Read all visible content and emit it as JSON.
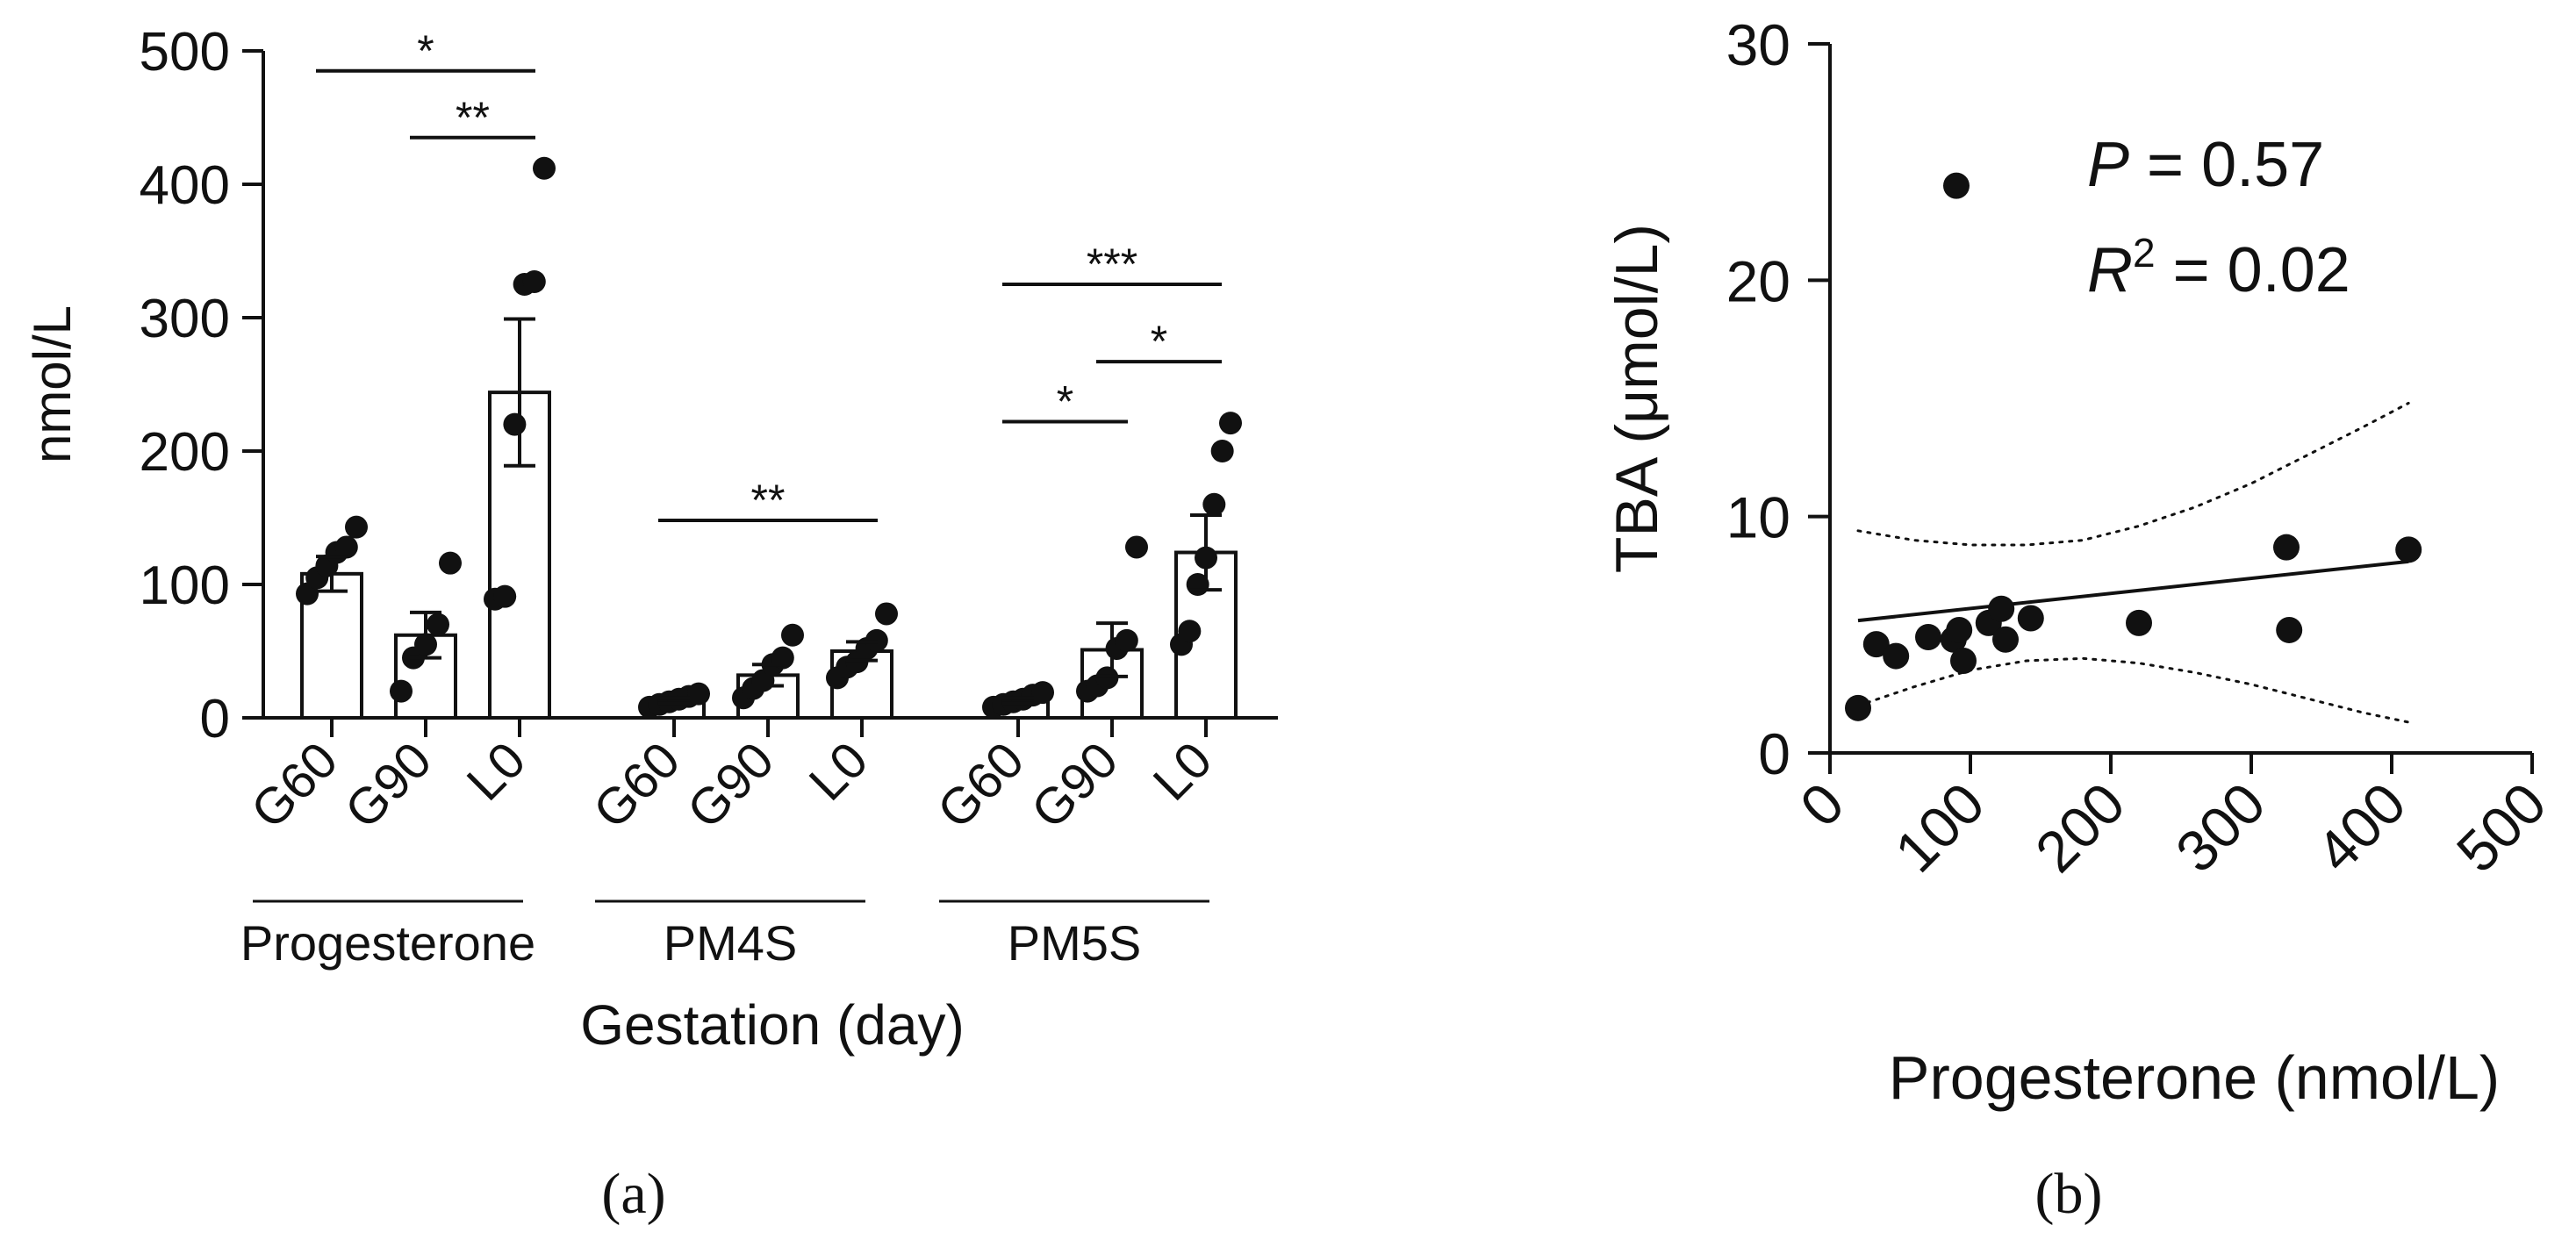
{
  "panel_a": {
    "panel_label": "(a)",
    "chart_data": {
      "type": "bar",
      "title": "",
      "ylabel": "nmol/L",
      "xlabel": "Gestation (day)",
      "ylim": [
        0,
        500
      ],
      "yticks": [
        0,
        100,
        200,
        300,
        400,
        500
      ],
      "yticklabels": [
        "0",
        "100",
        "200",
        "300",
        "400",
        "500"
      ],
      "groups": [
        {
          "name": "Progesterone",
          "bars": [
            {
              "label": "G60",
              "mean": 108,
              "sem": 13,
              "points": [
                93,
                105,
                114,
                124,
                128,
                143
              ]
            },
            {
              "label": "G90",
              "mean": 62,
              "sem": 17,
              "points": [
                20,
                45,
                55,
                70,
                116
              ]
            },
            {
              "label": "L0",
              "mean": 244,
              "sem": 55,
              "points": [
                89,
                91,
                220,
                325,
                327,
                412
              ]
            }
          ]
        },
        {
          "name": "PM4S",
          "bars": [
            {
              "label": "G60",
              "mean": 13,
              "sem": 2,
              "points": [
                8,
                10,
                12,
                14,
                16,
                18
              ]
            },
            {
              "label": "G90",
              "mean": 32,
              "sem": 8,
              "points": [
                15,
                22,
                28,
                40,
                45,
                62
              ]
            },
            {
              "label": "L0",
              "mean": 50,
              "sem": 7,
              "points": [
                30,
                38,
                42,
                52,
                58,
                78
              ]
            }
          ]
        },
        {
          "name": "PM5S",
          "bars": [
            {
              "label": "G60",
              "mean": 13,
              "sem": 2,
              "points": [
                8,
                10,
                12,
                14,
                17,
                19
              ]
            },
            {
              "label": "G90",
              "mean": 51,
              "sem": 20,
              "points": [
                20,
                24,
                30,
                52,
                58,
                128
              ]
            },
            {
              "label": "L0",
              "mean": 124,
              "sem": 28,
              "points": [
                55,
                65,
                100,
                120,
                160,
                200,
                221
              ]
            }
          ]
        }
      ],
      "significance": [
        {
          "group": 0,
          "from": 0,
          "to": 2,
          "label": "*",
          "y": 485
        },
        {
          "group": 0,
          "from": 1,
          "to": 2,
          "label": "**",
          "y": 435
        },
        {
          "group": 1,
          "from": 0,
          "to": 2,
          "label": "**",
          "y": 148
        },
        {
          "group": 2,
          "from": 0,
          "to": 2,
          "label": "***",
          "y": 325
        },
        {
          "group": 2,
          "from": 1,
          "to": 2,
          "label": "*",
          "y": 267
        },
        {
          "group": 2,
          "from": 0,
          "to": 1,
          "label": "*",
          "y": 222
        }
      ]
    }
  },
  "panel_b": {
    "panel_label": "(b)",
    "chart_data": {
      "type": "scatter",
      "title": "",
      "xlabel": "Progesterone (nmol/L)",
      "ylabel": "TBA (μmol/L)",
      "xlim": [
        0,
        500
      ],
      "ylim": [
        0,
        30
      ],
      "xticks": [
        0,
        100,
        200,
        300,
        400,
        500
      ],
      "xticklabels": [
        "0",
        "100",
        "200",
        "300",
        "400",
        "500"
      ],
      "yticks": [
        0,
        10,
        20,
        30
      ],
      "yticklabels": [
        "0",
        "10",
        "20",
        "30"
      ],
      "points": [
        {
          "x": 20,
          "y": 1.9
        },
        {
          "x": 33,
          "y": 4.6
        },
        {
          "x": 47,
          "y": 4.1
        },
        {
          "x": 70,
          "y": 4.9
        },
        {
          "x": 88,
          "y": 4.8
        },
        {
          "x": 90,
          "y": 24.0
        },
        {
          "x": 92,
          "y": 5.2
        },
        {
          "x": 95,
          "y": 3.9
        },
        {
          "x": 113,
          "y": 5.5
        },
        {
          "x": 122,
          "y": 6.1
        },
        {
          "x": 125,
          "y": 4.8
        },
        {
          "x": 143,
          "y": 5.7
        },
        {
          "x": 220,
          "y": 5.5
        },
        {
          "x": 325,
          "y": 8.7
        },
        {
          "x": 327,
          "y": 5.2
        },
        {
          "x": 412,
          "y": 8.6
        }
      ],
      "fit_line": {
        "x": [
          20,
          412
        ],
        "y": [
          5.6,
          8.1
        ]
      },
      "ci_upper": {
        "x": [
          20,
          60,
          100,
          140,
          180,
          220,
          260,
          300,
          340,
          380,
          412
        ],
        "y": [
          9.4,
          9.0,
          8.8,
          8.8,
          9.0,
          9.6,
          10.4,
          11.4,
          12.6,
          13.8,
          14.8
        ]
      },
      "ci_lower": {
        "x": [
          20,
          60,
          100,
          140,
          180,
          220,
          260,
          300,
          340,
          380,
          412
        ],
        "y": [
          2.0,
          2.8,
          3.5,
          3.9,
          4.0,
          3.8,
          3.4,
          2.9,
          2.3,
          1.7,
          1.3
        ]
      },
      "annotation": {
        "p_symbol": "P",
        "p_value": " = 0.57",
        "r_symbol": "R",
        "r_exponent": "2",
        "r_value": " = 0.02"
      }
    }
  }
}
